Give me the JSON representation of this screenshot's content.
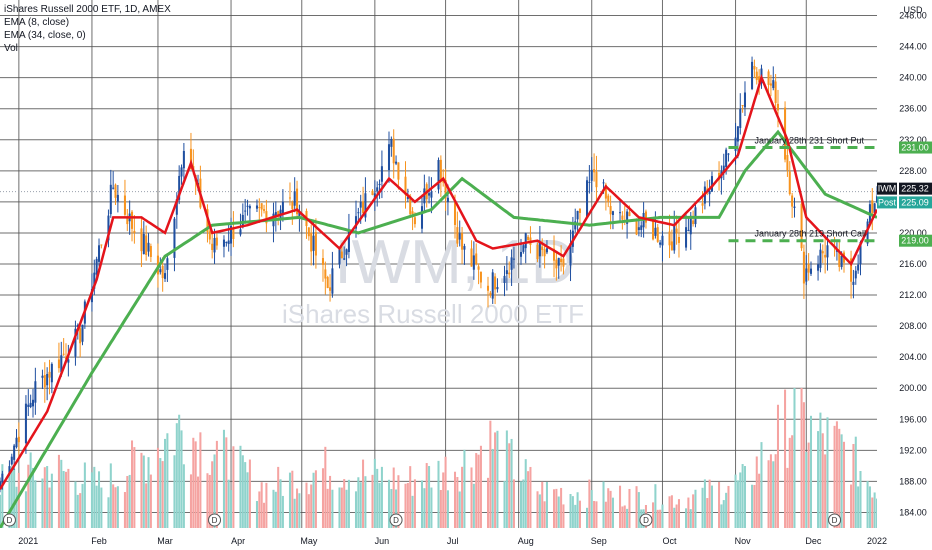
{
  "legend": {
    "title": "iShares Russell 2000 ETF, 1D, AMEX",
    "ema_fast": "EMA (8, close)",
    "ema_slow": "EMA (34, close, 0)",
    "vol": "Vol"
  },
  "watermark": {
    "symbol": "IWM, 1D",
    "name": "iShares Russell 2000 ETF"
  },
  "colors": {
    "up": "#26a69a",
    "down": "#ef5350",
    "wick_up": "#1f4fa0",
    "wick_down": "#f7931e",
    "ema_fast": "#e4141b",
    "ema_slow": "#4caf50",
    "vol_up": "#8fd3cc",
    "vol_down": "#f5a3a1",
    "grid": "#555555",
    "tag_dark": "#131722"
  },
  "chart_data": {
    "type": "candlestick",
    "currency": "USD",
    "ylim": [
      182,
      250
    ],
    "y_ticks": [
      "248.00",
      "244.00",
      "240.00",
      "236.00",
      "232.00",
      "228.00",
      "224.00",
      "220.00",
      "216.00",
      "212.00",
      "208.00",
      "204.00",
      "200.00",
      "196.00",
      "192.00",
      "188.00",
      "184.00"
    ],
    "x_labels": [
      "2021",
      "Feb",
      "Mar",
      "Apr",
      "May",
      "Jun",
      "Jul",
      "Aug",
      "Sep",
      "Oct",
      "Nov",
      "Dec",
      "2022"
    ],
    "x_range": [
      "2020-12-24",
      "2021-12-31"
    ],
    "price_tags": [
      {
        "label": "IWM",
        "value": "225.32"
      },
      {
        "label": "Post",
        "value": "225.09"
      },
      {
        "label": "",
        "value": "231.00"
      },
      {
        "label": "",
        "value": "219.00"
      }
    ],
    "levels": [
      {
        "label": "January 28th 231 Short Put",
        "price": 231.0,
        "start": "2021-10-29"
      },
      {
        "label": "January 28th 219 Short Call",
        "price": 219.0,
        "start": "2021-10-29"
      }
    ],
    "dividend_markers": [
      "2020-12-28",
      "2021-03-25",
      "2021-06-10",
      "2021-09-24",
      "2021-12-13"
    ],
    "close_anchors": [
      [
        "2020-12-24",
        188
      ],
      [
        "2021-01-08",
        200
      ],
      [
        "2021-01-27",
        207
      ],
      [
        "2021-02-10",
        226
      ],
      [
        "2021-02-18",
        221
      ],
      [
        "2021-03-04",
        214
      ],
      [
        "2021-03-12",
        232
      ],
      [
        "2021-03-24",
        218
      ],
      [
        "2021-04-08",
        222
      ],
      [
        "2021-04-29",
        224
      ],
      [
        "2021-05-12",
        213
      ],
      [
        "2021-05-20",
        219
      ],
      [
        "2021-06-08",
        231
      ],
      [
        "2021-06-18",
        222
      ],
      [
        "2021-06-28",
        229
      ],
      [
        "2021-07-08",
        218
      ],
      [
        "2021-07-19",
        213
      ],
      [
        "2021-08-05",
        219
      ],
      [
        "2021-08-19",
        215
      ],
      [
        "2021-09-02",
        228
      ],
      [
        "2021-09-10",
        222
      ],
      [
        "2021-09-23",
        221
      ],
      [
        "2021-10-04",
        219
      ],
      [
        "2021-10-14",
        222
      ],
      [
        "2021-10-29",
        230
      ],
      [
        "2021-11-08",
        242
      ],
      [
        "2021-11-18",
        238
      ],
      [
        "2021-11-30",
        215
      ],
      [
        "2021-12-10",
        218
      ],
      [
        "2021-12-20",
        214
      ],
      [
        "2021-12-31",
        225.3
      ]
    ],
    "ema_fast_anchors": [
      [
        "2020-12-24",
        187
      ],
      [
        "2021-01-13",
        197
      ],
      [
        "2021-02-03",
        214
      ],
      [
        "2021-02-10",
        222
      ],
      [
        "2021-02-22",
        222
      ],
      [
        "2021-03-04",
        220
      ],
      [
        "2021-03-15",
        229
      ],
      [
        "2021-03-24",
        220
      ],
      [
        "2021-04-08",
        221
      ],
      [
        "2021-04-29",
        223
      ],
      [
        "2021-05-17",
        218
      ],
      [
        "2021-06-07",
        227
      ],
      [
        "2021-06-18",
        224
      ],
      [
        "2021-06-30",
        227
      ],
      [
        "2021-07-14",
        219
      ],
      [
        "2021-07-21",
        218
      ],
      [
        "2021-08-09",
        219
      ],
      [
        "2021-08-20",
        217
      ],
      [
        "2021-09-07",
        226
      ],
      [
        "2021-09-21",
        222
      ],
      [
        "2021-10-06",
        221
      ],
      [
        "2021-10-22",
        226
      ],
      [
        "2021-11-02",
        230
      ],
      [
        "2021-11-12",
        240
      ],
      [
        "2021-11-23",
        232
      ],
      [
        "2021-12-01",
        222
      ],
      [
        "2021-12-20",
        216
      ],
      [
        "2021-12-31",
        223
      ]
    ],
    "ema_slow_anchors": [
      [
        "2020-12-24",
        182
      ],
      [
        "2021-02-01",
        202
      ],
      [
        "2021-03-04",
        217
      ],
      [
        "2021-03-24",
        221
      ],
      [
        "2021-04-30",
        222
      ],
      [
        "2021-05-25",
        220
      ],
      [
        "2021-06-25",
        223
      ],
      [
        "2021-07-08",
        227
      ],
      [
        "2021-07-30",
        222
      ],
      [
        "2021-08-31",
        221
      ],
      [
        "2021-09-30",
        222
      ],
      [
        "2021-10-25",
        222
      ],
      [
        "2021-11-05",
        228
      ],
      [
        "2021-11-19",
        233
      ],
      [
        "2021-12-09",
        225
      ],
      [
        "2021-12-31",
        222
      ]
    ],
    "volume_scale": "relative 0-1",
    "volume_anchors": [
      [
        "2020-12-24",
        0.35
      ],
      [
        "2021-01-15",
        0.45
      ],
      [
        "2021-02-05",
        0.32
      ],
      [
        "2021-02-25",
        0.55
      ],
      [
        "2021-03-10",
        0.75
      ],
      [
        "2021-03-24",
        0.6
      ],
      [
        "2021-04-15",
        0.3
      ],
      [
        "2021-05-12",
        0.45
      ],
      [
        "2021-06-15",
        0.35
      ],
      [
        "2021-07-08",
        0.48
      ],
      [
        "2021-07-20",
        0.65
      ],
      [
        "2021-08-10",
        0.28
      ],
      [
        "2021-09-10",
        0.25
      ],
      [
        "2021-10-10",
        0.22
      ],
      [
        "2021-11-05",
        0.35
      ],
      [
        "2021-11-26",
        0.85
      ],
      [
        "2021-12-03",
        0.72
      ],
      [
        "2021-12-17",
        0.6
      ],
      [
        "2021-12-31",
        0.28
      ]
    ]
  }
}
